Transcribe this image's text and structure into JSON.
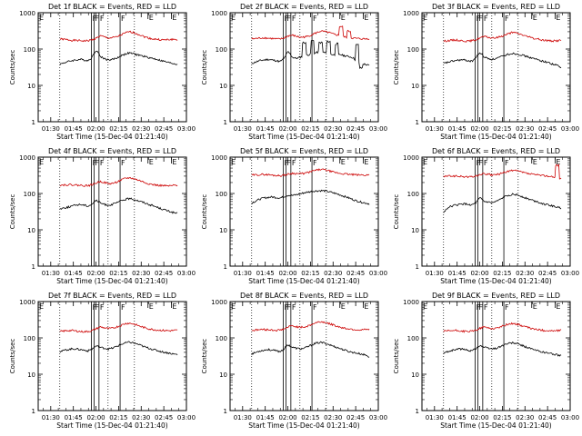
{
  "chart_data": [
    {
      "type": "line",
      "title": "Det 1f BLACK = Events, RED = LLD",
      "xlabel": "Start Time (15-Dec-04 01:21:40)",
      "ylabel": "Counts/sec",
      "ylog": true,
      "ylim": [
        1,
        1000
      ],
      "xlim": [
        "01:21",
        "03:00"
      ],
      "series": [
        {
          "key": "lld",
          "color": "#cc0000",
          "values": [
            190,
            185,
            180,
            175,
            172,
            170,
            168,
            170,
            180,
            200,
            230,
            215,
            200,
            205,
            215,
            240,
            270,
            300,
            290,
            265,
            240,
            215,
            200,
            190,
            185,
            180,
            178,
            182,
            186,
            180
          ],
          "features": []
        },
        {
          "key": "events",
          "color": "#000000",
          "values": [
            38,
            42,
            45,
            48,
            50,
            52,
            50,
            48,
            60,
            95,
            62,
            55,
            50,
            52,
            56,
            65,
            72,
            78,
            75,
            70,
            66,
            62,
            58,
            55,
            52,
            48,
            45,
            42,
            40,
            38
          ],
          "features": []
        }
      ]
    },
    {
      "type": "line",
      "title": "Det 2f BLACK = Events, RED = LLD",
      "xlabel": "Start Time (15-Dec-04 01:21:40)",
      "ylabel": "Counts/sec",
      "ylog": true,
      "ylim": [
        1,
        1000
      ],
      "xlim": [
        "01:21",
        "03:00"
      ],
      "series": [
        {
          "key": "lld",
          "color": "#cc0000",
          "values": [
            190,
            195,
            200,
            205,
            200,
            195,
            190,
            188,
            200,
            230,
            240,
            225,
            210,
            215,
            225,
            255,
            280,
            310,
            300,
            285,
            260,
            245,
            230,
            215,
            205,
            200,
            195,
            192,
            190,
            195
          ],
          "features": [
            {
              "at": 22,
              "value": 420
            },
            {
              "at": 24,
              "value": 310
            }
          ]
        },
        {
          "key": "events",
          "color": "#000000",
          "values": [
            40,
            44,
            48,
            50,
            52,
            50,
            48,
            45,
            55,
            85,
            60,
            55,
            60,
            65,
            70,
            75,
            80,
            85,
            80,
            75,
            70,
            68,
            70,
            65,
            62,
            58,
            45,
            40,
            38,
            35
          ],
          "features": [
            {
              "at": 13,
              "value": 150
            },
            {
              "at": 15,
              "value": 170
            },
            {
              "at": 17,
              "value": 150
            },
            {
              "at": 19,
              "value": 160
            },
            {
              "at": 21,
              "value": 140
            },
            {
              "at": 26,
              "value": 130
            },
            {
              "at": 27,
              "value": 30
            }
          ]
        }
      ]
    },
    {
      "type": "line",
      "title": "Det 3f BLACK = Events, RED = LLD",
      "xlabel": "Start Time (15-Dec-04 01:21:40)",
      "ylabel": "Counts/sec",
      "ylog": true,
      "ylim": [
        1,
        1000
      ],
      "xlim": [
        "01:21",
        "03:00"
      ],
      "series": [
        {
          "key": "lld",
          "color": "#cc0000",
          "values": [
            165,
            170,
            175,
            178,
            172,
            168,
            165,
            170,
            180,
            205,
            220,
            210,
            200,
            205,
            220,
            240,
            265,
            285,
            275,
            255,
            235,
            215,
            200,
            190,
            180,
            175,
            170,
            168,
            170,
            175
          ],
          "features": []
        },
        {
          "key": "events",
          "color": "#000000",
          "values": [
            40,
            43,
            46,
            48,
            50,
            50,
            48,
            46,
            58,
            80,
            60,
            55,
            52,
            55,
            60,
            66,
            72,
            76,
            74,
            70,
            65,
            60,
            55,
            52,
            48,
            45,
            42,
            38,
            36,
            30
          ],
          "features": []
        }
      ]
    },
    {
      "type": "line",
      "title": "Det 4f BLACK = Events, RED = LLD",
      "xlabel": "Start Time (15-Dec-04 01:21:40)",
      "ylabel": "Counts/sec",
      "ylog": true,
      "ylim": [
        1,
        1000
      ],
      "xlim": [
        "01:21",
        "03:00"
      ],
      "series": [
        {
          "key": "lld",
          "color": "#cc0000",
          "values": [
            170,
            172,
            175,
            175,
            170,
            168,
            165,
            165,
            175,
            195,
            215,
            200,
            185,
            190,
            205,
            230,
            255,
            270,
            260,
            240,
            220,
            200,
            185,
            175,
            168,
            165,
            162,
            160,
            165,
            170
          ],
          "features": []
        },
        {
          "key": "events",
          "color": "#000000",
          "values": [
            38,
            40,
            42,
            45,
            48,
            50,
            48,
            45,
            52,
            65,
            55,
            50,
            48,
            50,
            55,
            62,
            68,
            72,
            70,
            65,
            60,
            55,
            50,
            46,
            42,
            38,
            35,
            32,
            30,
            28
          ],
          "features": []
        }
      ]
    },
    {
      "type": "line",
      "title": "Det 5f BLACK = Events, RED = LLD",
      "xlabel": "Start Time (15-Dec-04 01:21:40)",
      "ylabel": "Counts/sec",
      "ylog": true,
      "ylim": [
        1,
        1000
      ],
      "xlim": [
        "01:21",
        "03:00"
      ],
      "series": [
        {
          "key": "lld",
          "color": "#cc0000",
          "values": [
            320,
            325,
            330,
            335,
            330,
            320,
            315,
            310,
            320,
            340,
            360,
            355,
            350,
            360,
            380,
            410,
            440,
            460,
            450,
            420,
            390,
            370,
            355,
            345,
            335,
            330,
            325,
            322,
            320,
            325
          ],
          "features": []
        },
        {
          "key": "events",
          "color": "#000000",
          "values": [
            55,
            62,
            70,
            75,
            78,
            80,
            78,
            75,
            82,
            90,
            88,
            92,
            98,
            105,
            110,
            115,
            118,
            120,
            118,
            112,
            105,
            98,
            90,
            82,
            75,
            68,
            62,
            58,
            55,
            52
          ],
          "features": []
        }
      ]
    },
    {
      "type": "line",
      "title": "Det 6f BLACK = Events, RED = LLD",
      "xlabel": "Start Time (15-Dec-04 01:21:40)",
      "ylabel": "Counts/sec",
      "ylog": true,
      "ylim": [
        1,
        1000
      ],
      "xlim": [
        "01:21",
        "03:00"
      ],
      "series": [
        {
          "key": "lld",
          "color": "#cc0000",
          "values": [
            295,
            300,
            305,
            300,
            295,
            290,
            285,
            290,
            300,
            330,
            350,
            335,
            320,
            330,
            350,
            380,
            410,
            430,
            420,
            395,
            370,
            350,
            335,
            325,
            315,
            310,
            300,
            280,
            270,
            260
          ],
          "features": [
            {
              "at": 28,
              "value": 600
            }
          ]
        },
        {
          "key": "events",
          "color": "#000000",
          "values": [
            30,
            40,
            45,
            48,
            50,
            52,
            50,
            48,
            55,
            75,
            60,
            58,
            55,
            60,
            68,
            80,
            90,
            95,
            92,
            85,
            78,
            70,
            65,
            60,
            55,
            50,
            48,
            45,
            42,
            40
          ],
          "features": []
        }
      ]
    },
    {
      "type": "line",
      "title": "Det 7f BLACK = Events, RED = LLD",
      "xlabel": "Start Time (15-Dec-04 01:21:40)",
      "ylabel": "Counts/sec",
      "ylog": true,
      "ylim": [
        1,
        1000
      ],
      "xlim": [
        "01:21",
        "03:00"
      ],
      "series": [
        {
          "key": "lld",
          "color": "#cc0000",
          "values": [
            150,
            155,
            160,
            160,
            155,
            150,
            148,
            150,
            160,
            180,
            200,
            190,
            180,
            185,
            200,
            220,
            245,
            255,
            245,
            225,
            205,
            190,
            178,
            170,
            165,
            162,
            160,
            158,
            160,
            162
          ],
          "features": []
        },
        {
          "key": "events",
          "color": "#000000",
          "values": [
            42,
            45,
            48,
            50,
            50,
            48,
            46,
            44,
            50,
            60,
            55,
            52,
            50,
            52,
            58,
            65,
            72,
            76,
            74,
            68,
            62,
            56,
            52,
            48,
            45,
            42,
            40,
            38,
            36,
            35
          ],
          "features": []
        }
      ]
    },
    {
      "type": "line",
      "title": "Det 8f BLACK = Events, RED = LLD",
      "xlabel": "Start Time (15-Dec-04 01:21:40)",
      "ylabel": "Counts/sec",
      "ylog": true,
      "ylim": [
        1,
        1000
      ],
      "xlim": [
        "01:21",
        "03:00"
      ],
      "series": [
        {
          "key": "lld",
          "color": "#cc0000",
          "values": [
            160,
            165,
            170,
            170,
            168,
            165,
            162,
            165,
            175,
            200,
            215,
            205,
            195,
            200,
            215,
            240,
            265,
            280,
            270,
            250,
            230,
            210,
            195,
            185,
            178,
            172,
            168,
            165,
            168,
            170
          ],
          "features": []
        },
        {
          "key": "events",
          "color": "#000000",
          "values": [
            36,
            40,
            44,
            46,
            48,
            46,
            44,
            42,
            50,
            65,
            55,
            52,
            50,
            52,
            58,
            66,
            72,
            75,
            72,
            66,
            60,
            55,
            50,
            46,
            42,
            40,
            38,
            36,
            34,
            30
          ],
          "features": []
        }
      ]
    },
    {
      "type": "line",
      "title": "Det 9f BLACK = Events, RED = LLD",
      "xlabel": "Start Time (15-Dec-04 01:21:40)",
      "ylabel": "Counts/sec",
      "ylog": true,
      "ylim": [
        1,
        1000
      ],
      "xlim": [
        "01:21",
        "03:00"
      ],
      "series": [
        {
          "key": "lld",
          "color": "#cc0000",
          "values": [
            150,
            155,
            158,
            160,
            156,
            152,
            150,
            152,
            162,
            185,
            200,
            190,
            180,
            185,
            200,
            220,
            240,
            250,
            240,
            222,
            205,
            190,
            178,
            170,
            165,
            160,
            158,
            156,
            158,
            160
          ],
          "features": []
        },
        {
          "key": "events",
          "color": "#000000",
          "values": [
            38,
            42,
            45,
            48,
            50,
            48,
            46,
            44,
            52,
            62,
            55,
            52,
            50,
            52,
            58,
            65,
            70,
            73,
            70,
            64,
            58,
            53,
            48,
            45,
            42,
            40,
            38,
            36,
            34,
            33
          ],
          "features": []
        }
      ]
    }
  ],
  "axes": {
    "y_ticks": [
      {
        "v": 1,
        "label": "1"
      },
      {
        "v": 10,
        "label": "10"
      },
      {
        "v": 100,
        "label": "100"
      },
      {
        "v": 1000,
        "label": "1000"
      }
    ],
    "x_ticks": [
      {
        "min": 90,
        "label": "01:30"
      },
      {
        "min": 105,
        "label": "01:45"
      },
      {
        "min": 120,
        "label": "02:00"
      },
      {
        "min": 135,
        "label": "02:15"
      },
      {
        "min": 150,
        "label": "02:30"
      },
      {
        "min": 165,
        "label": "02:45"
      },
      {
        "min": 180,
        "label": "03:00"
      }
    ],
    "x_start_min": 81.67,
    "x_end_min": 180
  },
  "markers": {
    "f_lines": [
      {
        "min": 117,
        "label": "F"
      },
      {
        "min": 118.7,
        "label": "F"
      },
      {
        "min": 122,
        "label": "F"
      },
      {
        "min": 136,
        "label": "F"
      }
    ],
    "e_lines": [
      {
        "min": 154.5,
        "label": "E"
      },
      {
        "min": 170,
        "label": "E"
      }
    ],
    "e_start_label": "E",
    "dotted_lines": [
      {
        "min": 96
      },
      {
        "min": 128
      },
      {
        "min": 145.5
      }
    ]
  }
}
